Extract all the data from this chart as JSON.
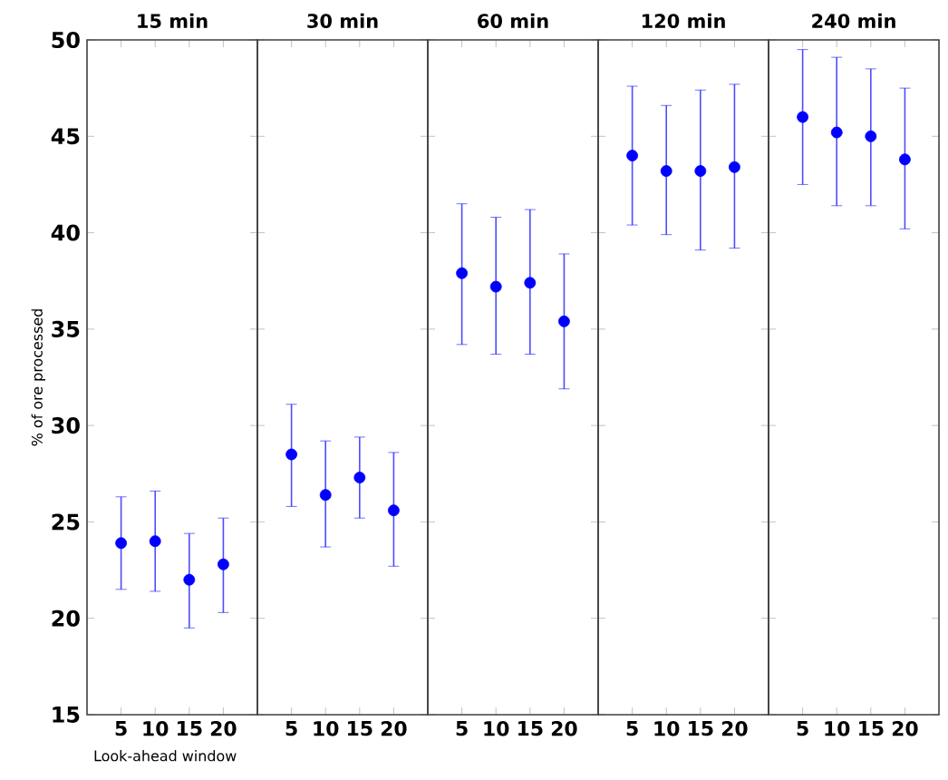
{
  "chart_data": [
    {
      "type": "scatter",
      "title": "15 min",
      "xlabel": "Look-ahead window",
      "ylabel": "% of ore processed",
      "xlim": [
        0,
        25
      ],
      "xticks": [
        5,
        10,
        15,
        20
      ],
      "ylim": [
        15,
        50
      ],
      "yticks": [
        15,
        20,
        25,
        30,
        35,
        40,
        45,
        50
      ],
      "x": [
        5,
        10,
        15,
        20
      ],
      "series": [
        {
          "color": "#0000ff",
          "values": [
            23.9,
            24.0,
            22.0,
            22.8
          ],
          "errors": [
            [
              21.5,
              26.3
            ],
            [
              21.4,
              26.6
            ],
            [
              19.5,
              24.4
            ],
            [
              20.3,
              25.2
            ]
          ]
        }
      ]
    },
    {
      "type": "scatter",
      "title": "30 min",
      "tick_labels": "x",
      "xlim": [
        0,
        25
      ],
      "xticks": [
        5,
        10,
        15,
        20
      ],
      "ylim": [
        15,
        50
      ],
      "yticks": [
        15,
        20,
        25,
        30,
        35,
        40,
        45,
        50
      ],
      "x": [
        5,
        10,
        15,
        20
      ],
      "series": [
        {
          "color": "#0000ff",
          "values": [
            28.5,
            26.4,
            27.3,
            25.6
          ],
          "errors": [
            [
              25.8,
              31.1
            ],
            [
              23.7,
              29.2
            ],
            [
              25.2,
              29.4
            ],
            [
              22.7,
              28.6
            ]
          ]
        }
      ]
    },
    {
      "type": "scatter",
      "title": "60 min",
      "tick_labels": "x",
      "xlim": [
        0,
        25
      ],
      "xticks": [
        5,
        10,
        15,
        20
      ],
      "ylim": [
        15,
        50
      ],
      "yticks": [
        15,
        20,
        25,
        30,
        35,
        40,
        45,
        50
      ],
      "x": [
        5,
        10,
        15,
        20
      ],
      "series": [
        {
          "color": "#0000ff",
          "values": [
            37.9,
            37.2,
            37.4,
            35.4
          ],
          "errors": [
            [
              34.2,
              41.5
            ],
            [
              33.7,
              40.8
            ],
            [
              33.7,
              41.2
            ],
            [
              31.9,
              38.9
            ]
          ]
        }
      ]
    },
    {
      "type": "scatter",
      "title": "120 min",
      "tick_labels": "x",
      "xlim": [
        0,
        25
      ],
      "xticks": [
        5,
        10,
        15,
        20
      ],
      "ylim": [
        15,
        50
      ],
      "yticks": [
        15,
        20,
        25,
        30,
        35,
        40,
        45,
        50
      ],
      "x": [
        5,
        10,
        15,
        20
      ],
      "series": [
        {
          "color": "#0000ff",
          "values": [
            44.0,
            43.2,
            43.2,
            43.4
          ],
          "errors": [
            [
              40.4,
              47.6
            ],
            [
              39.9,
              46.6
            ],
            [
              39.1,
              47.4
            ],
            [
              39.2,
              47.7
            ]
          ]
        }
      ]
    },
    {
      "type": "scatter",
      "title": "240 min",
      "tick_labels": "x",
      "xlim": [
        0,
        25
      ],
      "xticks": [
        5,
        10,
        15,
        20
      ],
      "ylim": [
        15,
        50
      ],
      "yticks": [
        15,
        20,
        25,
        30,
        35,
        40,
        45,
        50
      ],
      "x": [
        5,
        10,
        15,
        20
      ],
      "series": [
        {
          "color": "#0000ff",
          "values": [
            46.0,
            45.2,
            45.0,
            43.8
          ],
          "errors": [
            [
              42.5,
              49.5
            ],
            [
              41.4,
              49.1
            ],
            [
              41.4,
              48.5
            ],
            [
              40.2,
              47.5
            ]
          ]
        }
      ]
    }
  ]
}
